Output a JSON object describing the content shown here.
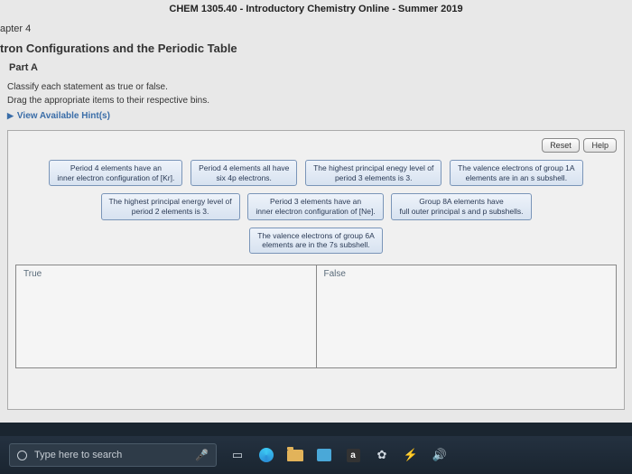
{
  "course_title": "CHEM 1305.40 - Introductory Chemistry Online - Summer 2019",
  "chapter": "apter 4",
  "topic": "tron Configurations and the Periodic Table",
  "part": "Part A",
  "instruction1": "Classify each statement as true or false.",
  "instruction2": "Drag the appropriate items to their respective bins.",
  "hints_label": "View Available Hint(s)",
  "buttons": {
    "reset": "Reset",
    "help": "Help"
  },
  "cards": {
    "r1c1": "Period 4 elements have an\ninner electron configuration of [Kr].",
    "r1c2": "Period 4 elements all have\nsix 4p electrons.",
    "r1c3": "The highest principal enegy level of\nperiod 3 elements is 3.",
    "r1c4": "The valence electrons of group 1A\nelements are in an s subshell.",
    "r2c1": "The highest principal energy level of\nperiod 2 elements is 3.",
    "r2c2": "Period 3 elements have an\ninner electron configuration of [Ne].",
    "r2c3": "Group 8A elements have\nfull outer principal s and p subshells.",
    "r3c1": "The valence electrons of group 6A\nelements are in the 7s subshell."
  },
  "bins": {
    "true": "True",
    "false": "False"
  },
  "taskbar": {
    "search_placeholder": "Type here to search",
    "amazon": "a"
  }
}
